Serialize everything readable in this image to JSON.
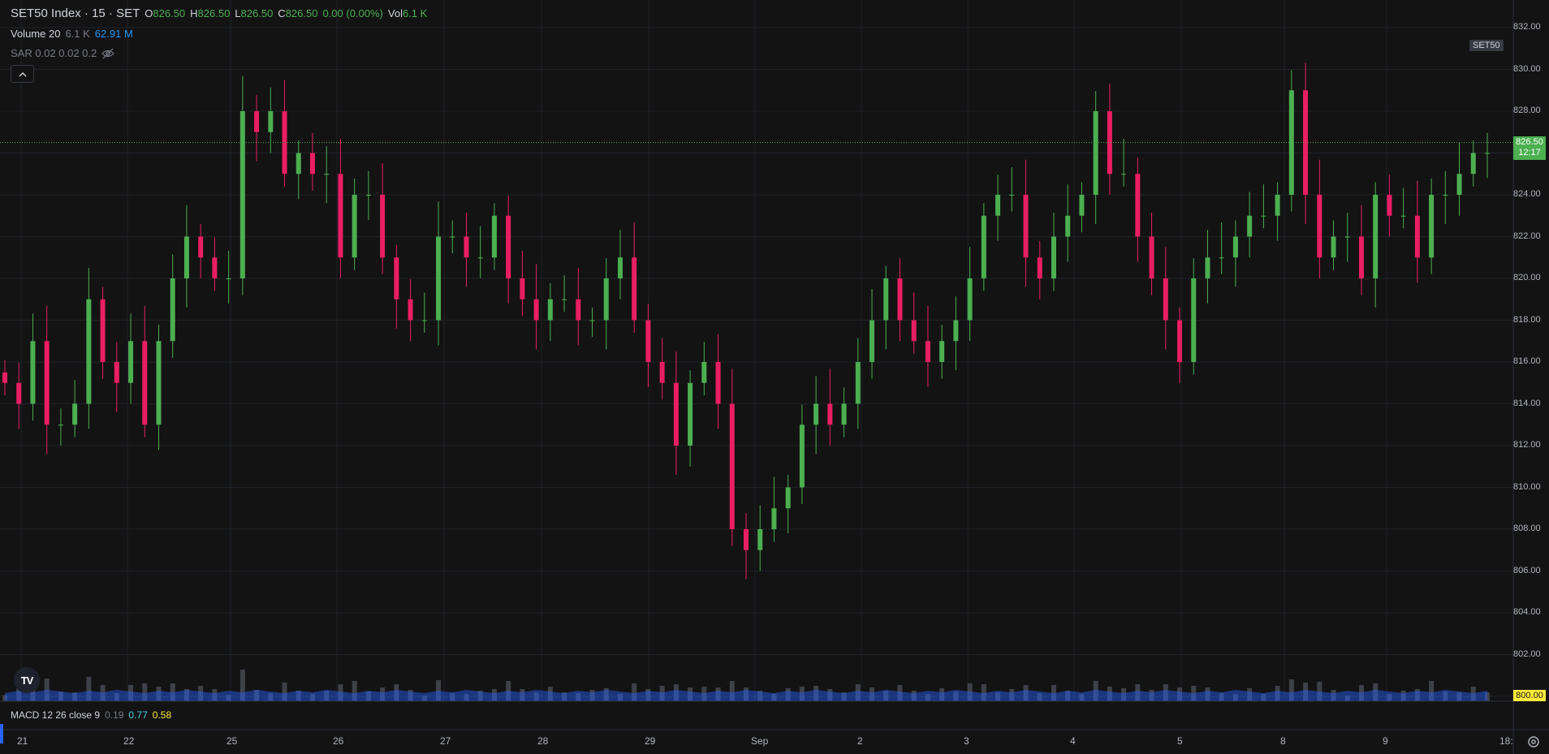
{
  "header": {
    "symbol_title": "SET50 Index · 15 · SET",
    "ohlc": [
      {
        "key": "O",
        "value": "826.50"
      },
      {
        "key": "H",
        "value": "826.50"
      },
      {
        "key": "L",
        "value": "826.50"
      },
      {
        "key": "C",
        "value": "826.50"
      }
    ],
    "change": "0.00 (0.00%)",
    "vol_key": "Vol",
    "vol_value": "6.1 K"
  },
  "indicators": {
    "volume": {
      "name": "Volume 20",
      "v1": "6.1 K",
      "v2": "62.91 M"
    },
    "sar": {
      "name": "SAR 0.02 0.02 0.2"
    },
    "macd": {
      "name": "MACD 12 26 close 9",
      "v1": "0.19",
      "v2": "0.77",
      "v3": "0.58"
    }
  },
  "symbol_tag": "SET50",
  "price_axis": {
    "labels": [
      "832.00",
      "830.00",
      "828.00",
      "826.00",
      "824.00",
      "822.00",
      "820.00",
      "818.00",
      "816.00",
      "814.00",
      "812.00",
      "810.00",
      "808.00",
      "806.00",
      "804.00",
      "802.00",
      "800.00"
    ],
    "last_price": "826.50",
    "countdown": "12:17",
    "bottom_value": "800.00"
  },
  "time_axis": {
    "labels": [
      "21",
      "22",
      "25",
      "26",
      "27",
      "28",
      "29",
      "Sep",
      "2",
      "3",
      "4",
      "5",
      "8",
      "9",
      "18:"
    ]
  },
  "logo_text": "TV",
  "icons": {
    "collapse": "chevron-up-icon",
    "sar_visibility": "eye-off-icon",
    "settings": "gear-icon",
    "logo": "tradingview-logo-icon"
  },
  "colors": {
    "up": "#4caf50",
    "down": "#e91e63",
    "volume_ma": "#2962ff",
    "last_price": "#4caf50",
    "background": "#131313"
  },
  "chart_data": {
    "type": "candlestick",
    "y_range": [
      800,
      832
    ],
    "closes": [
      815,
      814,
      817,
      813,
      813,
      814,
      819,
      816,
      815,
      817,
      813,
      817,
      820,
      822,
      821,
      820,
      820,
      828,
      827,
      828,
      825,
      826,
      825,
      825,
      821,
      824,
      824,
      821,
      819,
      818,
      818,
      822,
      822,
      821,
      821,
      823,
      820,
      819,
      818,
      819,
      819,
      818,
      818,
      820,
      821,
      818,
      816,
      815,
      812,
      815,
      816,
      814,
      808,
      807,
      808,
      809,
      810,
      813,
      814,
      813,
      814,
      816,
      818,
      820,
      818,
      817,
      816,
      817,
      818,
      820,
      823,
      824,
      824,
      821,
      820,
      822,
      823,
      824,
      828,
      825,
      825,
      822,
      820,
      818,
      816,
      820,
      821,
      821,
      822,
      823,
      823,
      824,
      829,
      824,
      821,
      822,
      822,
      820,
      824,
      823,
      823,
      821,
      824,
      824,
      825,
      826,
      826
    ]
  }
}
